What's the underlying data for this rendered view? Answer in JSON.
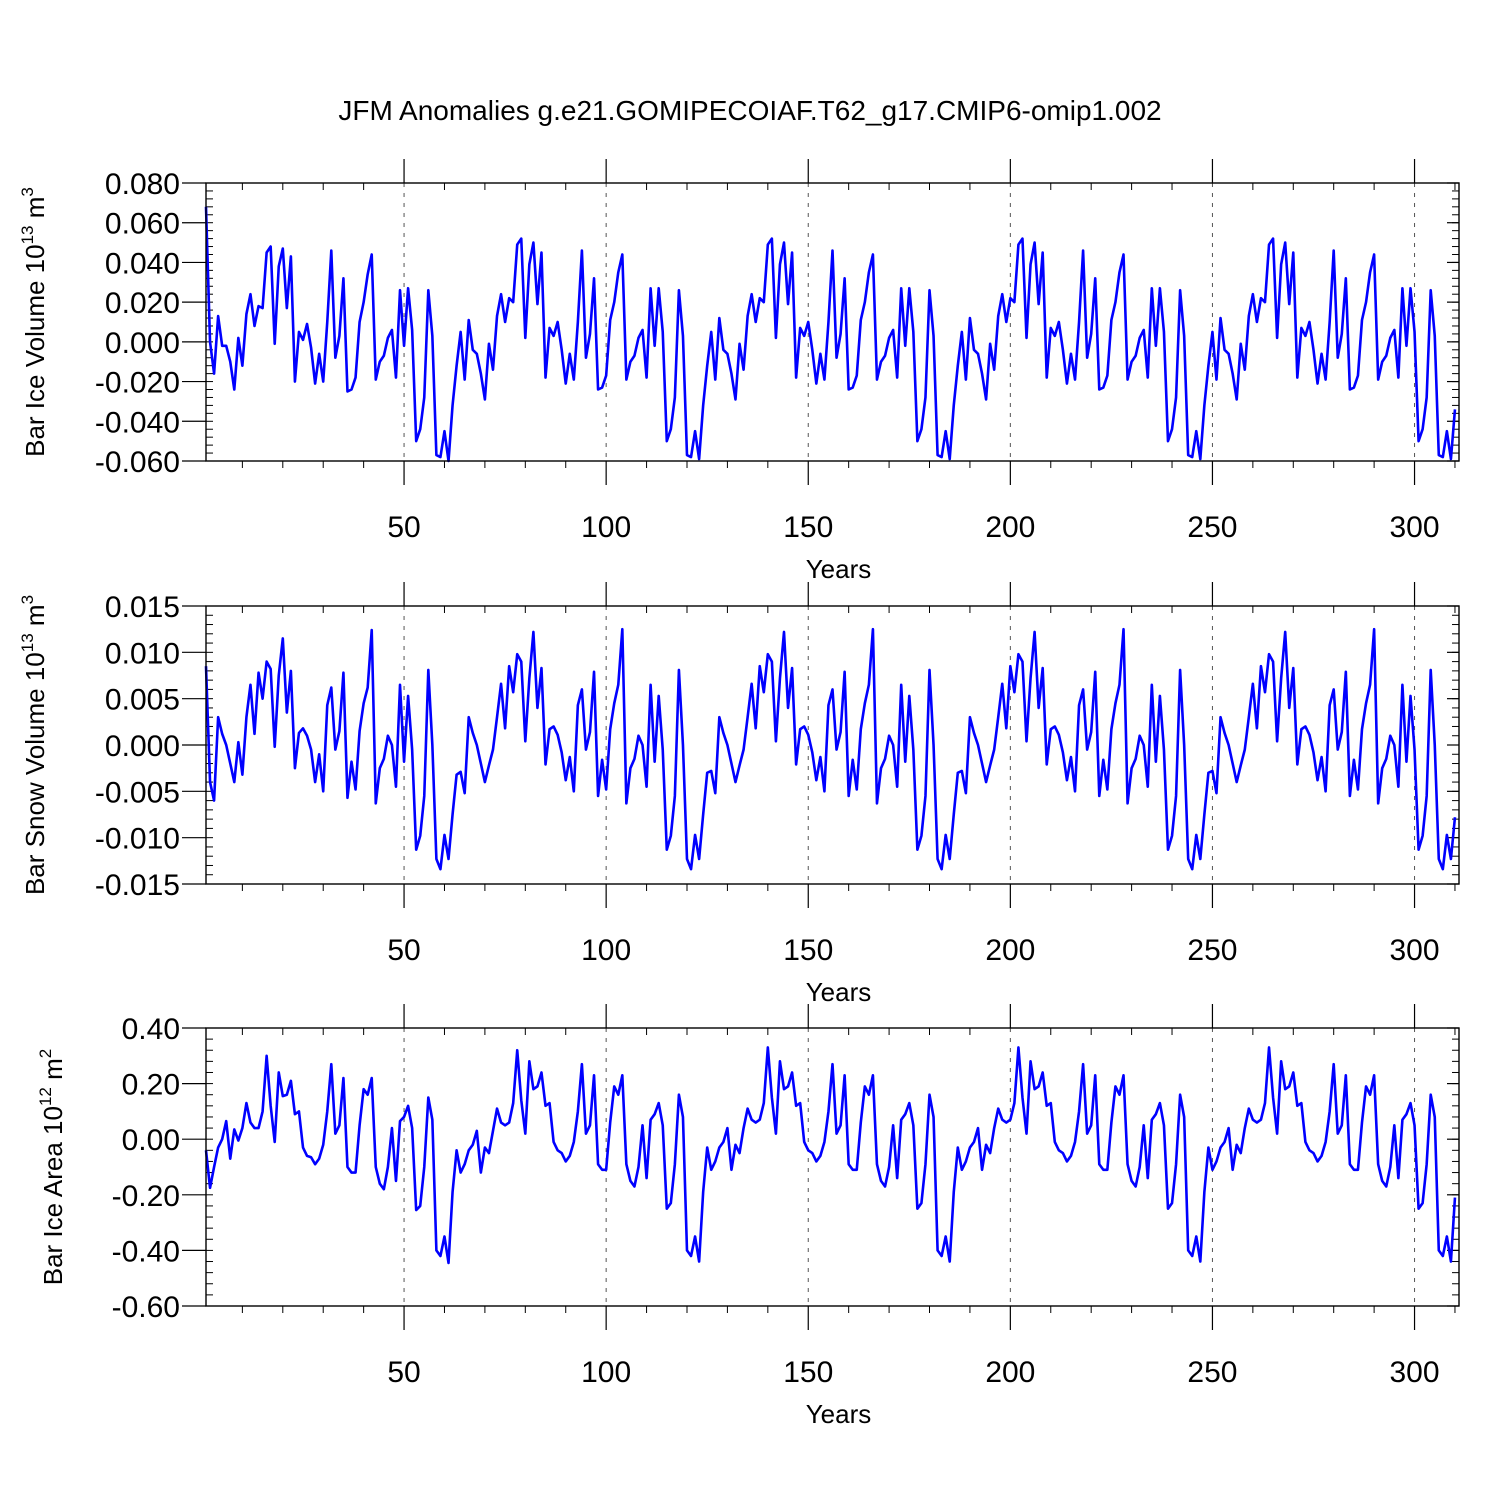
{
  "title": "JFM Anomalies g.e21.GOMIPECOIAF.T62_g17.CMIP6-omip1.002",
  "line_color": "#0000ff",
  "chart_data": [
    {
      "type": "line",
      "name": "bar-ice-volume",
      "xlabel": "Years",
      "ylabel_text": "Bar Ice Volume 10",
      "ylabel_exponent": "13",
      "ylabel_unit": " m",
      "ylabel_unit_exponent": "3",
      "xlim": [
        1,
        311
      ],
      "ylim": [
        -0.06,
        0.08
      ],
      "xticks": [
        50,
        100,
        150,
        200,
        250,
        300
      ],
      "xtick_labels": [
        "50",
        "100",
        "150",
        "200",
        "250",
        "300"
      ],
      "yticks": [
        -0.06,
        -0.04,
        -0.02,
        0.0,
        0.02,
        0.04,
        0.06,
        0.08
      ],
      "ytick_labels": [
        "-0.060",
        "-0.040",
        "-0.020",
        "0.000",
        "0.020",
        "0.040",
        "0.060",
        "0.080"
      ],
      "vertical_gridlines_at": [
        50,
        100,
        150,
        200,
        250,
        300
      ],
      "x_start": 1,
      "x_step": 1,
      "values": [
        0.068,
        0.0,
        -0.016,
        0.013,
        -0.002,
        -0.002,
        -0.01,
        -0.024,
        0.002,
        -0.012,
        0.014,
        0.024,
        0.008,
        0.018,
        0.017,
        0.045,
        0.048,
        -0.001,
        0.038,
        0.047,
        0.017,
        0.043,
        -0.02,
        0.005,
        0.001,
        0.009,
        -0.003,
        -0.021,
        -0.006,
        -0.02,
        0.01,
        0.046,
        -0.008,
        0.003,
        0.032,
        -0.025,
        -0.024,
        -0.018,
        0.01,
        0.02,
        0.034,
        0.044,
        -0.019,
        -0.01,
        -0.007,
        0.002,
        0.006,
        -0.018,
        0.026,
        -0.002,
        0.027,
        0.006,
        -0.05,
        -0.044,
        -0.028,
        0.026,
        0.003,
        -0.057,
        -0.058,
        -0.045,
        -0.06,
        -0.032,
        -0.012,
        0.005,
        -0.019,
        0.011,
        -0.004,
        -0.006,
        -0.016,
        -0.029,
        -0.001,
        -0.014,
        0.013,
        0.024,
        0.01,
        0.022,
        0.02,
        0.049,
        0.052,
        0.002,
        0.039,
        0.05,
        0.019,
        0.045,
        -0.018,
        0.007,
        0.003,
        0.01,
        -0.004,
        -0.021,
        -0.006,
        -0.019,
        0.01,
        0.046,
        -0.008,
        0.004,
        0.032,
        -0.024,
        -0.023,
        -0.017,
        0.011,
        0.02,
        0.035,
        0.044,
        -0.019,
        -0.01,
        -0.007,
        0.002,
        0.006,
        -0.018,
        0.027,
        -0.002,
        0.027,
        0.005,
        -0.05,
        -0.044,
        -0.028,
        0.026,
        0.003,
        -0.057,
        -0.058,
        -0.045,
        -0.059,
        -0.032,
        -0.012,
        0.005,
        -0.019,
        0.012,
        -0.004,
        -0.006,
        -0.016,
        -0.029,
        -0.001,
        -0.014,
        0.013,
        0.024,
        0.01,
        0.022,
        0.02,
        0.049,
        0.052,
        0.002,
        0.039,
        0.05,
        0.019,
        0.045,
        -0.018,
        0.007,
        0.003,
        0.01,
        -0.004,
        -0.021,
        -0.006,
        -0.019,
        0.01,
        0.046,
        -0.008,
        0.004,
        0.032,
        -0.024,
        -0.023,
        -0.017,
        0.011,
        0.02,
        0.035,
        0.044,
        -0.019,
        -0.01,
        -0.007,
        0.002,
        0.006,
        -0.018,
        0.027,
        -0.002,
        0.027,
        0.005,
        -0.05,
        -0.044,
        -0.028,
        0.026,
        0.003,
        -0.057,
        -0.058,
        -0.045,
        -0.059,
        -0.032,
        -0.012,
        0.005,
        -0.019,
        0.012,
        -0.004,
        -0.006,
        -0.016,
        -0.029,
        -0.001,
        -0.014,
        0.013,
        0.024,
        0.01,
        0.022,
        0.02,
        0.049,
        0.052,
        0.002,
        0.039,
        0.05,
        0.019,
        0.045,
        -0.018,
        0.007,
        0.003,
        0.01,
        -0.004,
        -0.021,
        -0.006,
        -0.019,
        0.01,
        0.046,
        -0.008,
        0.004,
        0.032,
        -0.024,
        -0.023,
        -0.017,
        0.011,
        0.02,
        0.035,
        0.044,
        -0.019,
        -0.01,
        -0.007,
        0.002,
        0.006,
        -0.018,
        0.027,
        -0.002,
        0.027,
        0.005,
        -0.05,
        -0.044,
        -0.028,
        0.026,
        0.003,
        -0.057,
        -0.058,
        -0.045,
        -0.059,
        -0.032,
        -0.012,
        0.005,
        -0.019,
        0.012,
        -0.004,
        -0.006,
        -0.016,
        -0.029,
        -0.001,
        -0.014,
        0.013,
        0.024,
        0.01,
        0.022,
        0.02,
        0.049,
        0.052,
        0.002,
        0.039,
        0.05,
        0.019,
        0.045,
        -0.018,
        0.007,
        0.003,
        0.01,
        -0.004,
        -0.021,
        -0.006,
        -0.019,
        0.01,
        0.046,
        -0.008,
        0.004,
        0.032,
        -0.024,
        -0.023,
        -0.017,
        0.011,
        0.02,
        0.035,
        0.044,
        -0.019,
        -0.01,
        -0.007,
        0.002,
        0.006,
        -0.018,
        0.027,
        -0.002,
        0.027,
        0.005,
        -0.05,
        -0.044,
        -0.028,
        0.026,
        0.003,
        -0.057,
        -0.058,
        -0.045,
        -0.059,
        -0.034
      ]
    },
    {
      "type": "line",
      "name": "bar-snow-volume",
      "xlabel": "Years",
      "ylabel_text": "Bar Snow Volume 10",
      "ylabel_exponent": "13",
      "ylabel_unit": " m",
      "ylabel_unit_exponent": "3",
      "xlim": [
        1,
        311
      ],
      "ylim": [
        -0.015,
        0.015
      ],
      "xticks": [
        50,
        100,
        150,
        200,
        250,
        300
      ],
      "xtick_labels": [
        "50",
        "100",
        "150",
        "200",
        "250",
        "300"
      ],
      "yticks": [
        -0.015,
        -0.01,
        -0.005,
        0.0,
        0.005,
        0.01,
        0.015
      ],
      "ytick_labels": [
        "-0.015",
        "-0.010",
        "-0.005",
        "0.000",
        "0.005",
        "0.010",
        "0.015"
      ],
      "vertical_gridlines_at": [
        50,
        100,
        150,
        200,
        250,
        300
      ],
      "x_start": 1,
      "x_step": 1,
      "values": [
        0.0085,
        -0.004,
        -0.006,
        0.003,
        0.0012,
        0.0,
        -0.002,
        -0.004,
        0.0003,
        -0.0032,
        0.003,
        0.0065,
        0.0012,
        0.0078,
        0.005,
        0.009,
        0.0082,
        -0.0002,
        0.0075,
        0.0115,
        0.0035,
        0.008,
        -0.0025,
        0.0013,
        0.0018,
        0.001,
        -0.0005,
        -0.004,
        -0.001,
        -0.005,
        0.0043,
        0.0062,
        -0.0005,
        0.0015,
        0.0078,
        -0.0057,
        -0.0018,
        -0.0048,
        0.0015,
        0.0045,
        0.0062,
        0.0124,
        -0.0063,
        -0.0025,
        -0.0015,
        0.001,
        0.0,
        -0.0045,
        0.0065,
        -0.0018,
        0.0053,
        -0.0005,
        -0.0113,
        -0.0098,
        -0.0055,
        0.0081,
        0.0,
        -0.0123,
        -0.0134,
        -0.0097,
        -0.0123,
        -0.0075,
        -0.0032,
        -0.0029,
        -0.0052,
        0.003,
        0.0013,
        0.0,
        -0.002,
        -0.004,
        -0.0022,
        -0.0005,
        0.003,
        0.0066,
        0.0018,
        0.0085,
        0.0057,
        0.0098,
        0.009,
        0.0004,
        0.0072,
        0.0122,
        0.004,
        0.0083,
        -0.0021,
        0.0017,
        0.002,
        0.0011,
        -0.0008,
        -0.0038,
        -0.0013,
        -0.005,
        0.0043,
        0.006,
        -0.0005,
        0.0014,
        0.0079,
        -0.0055,
        -0.0016,
        -0.0048,
        0.0017,
        0.0045,
        0.0065,
        0.0125,
        -0.0063,
        -0.0025,
        -0.0015,
        0.001,
        0.0,
        -0.0045,
        0.0065,
        -0.0018,
        0.0053,
        -0.0005,
        -0.0113,
        -0.0098,
        -0.0055,
        0.0081,
        0.0,
        -0.0123,
        -0.0134,
        -0.0097,
        -0.0123,
        -0.0075,
        -0.003,
        -0.0028,
        -0.0052,
        0.003,
        0.0013,
        0.0,
        -0.002,
        -0.004,
        -0.0022,
        -0.0005,
        0.003,
        0.0066,
        0.0018,
        0.0085,
        0.0057,
        0.0098,
        0.009,
        0.0004,
        0.0072,
        0.0122,
        0.004,
        0.0083,
        -0.0021,
        0.0017,
        0.002,
        0.0011,
        -0.0008,
        -0.0038,
        -0.0013,
        -0.005,
        0.0043,
        0.006,
        -0.0005,
        0.0014,
        0.0079,
        -0.0055,
        -0.0016,
        -0.0048,
        0.0017,
        0.0045,
        0.0065,
        0.0125,
        -0.0063,
        -0.0025,
        -0.0015,
        0.001,
        0.0,
        -0.0045,
        0.0065,
        -0.0018,
        0.0053,
        -0.0005,
        -0.0113,
        -0.0098,
        -0.0055,
        0.0081,
        0.0,
        -0.0123,
        -0.0134,
        -0.0097,
        -0.0123,
        -0.0075,
        -0.003,
        -0.0028,
        -0.0052,
        0.003,
        0.0013,
        0.0,
        -0.002,
        -0.004,
        -0.0022,
        -0.0005,
        0.003,
        0.0066,
        0.0018,
        0.0085,
        0.0057,
        0.0098,
        0.009,
        0.0004,
        0.0072,
        0.0122,
        0.004,
        0.0083,
        -0.0021,
        0.0017,
        0.002,
        0.0011,
        -0.0008,
        -0.0038,
        -0.0013,
        -0.005,
        0.0043,
        0.006,
        -0.0005,
        0.0014,
        0.0079,
        -0.0055,
        -0.0016,
        -0.0048,
        0.0017,
        0.0045,
        0.0065,
        0.0125,
        -0.0063,
        -0.0025,
        -0.0015,
        0.001,
        0.0,
        -0.0045,
        0.0065,
        -0.0018,
        0.0053,
        -0.0005,
        -0.0113,
        -0.0098,
        -0.0055,
        0.0081,
        0.0,
        -0.0123,
        -0.0134,
        -0.0097,
        -0.0123,
        -0.0075,
        -0.003,
        -0.0028,
        -0.0052,
        0.003,
        0.0013,
        0.0,
        -0.002,
        -0.004,
        -0.0022,
        -0.0005,
        0.003,
        0.0066,
        0.0018,
        0.0085,
        0.0057,
        0.0098,
        0.009,
        0.0004,
        0.0072,
        0.0122,
        0.004,
        0.0083,
        -0.0021,
        0.0017,
        0.002,
        0.0011,
        -0.0008,
        -0.0038,
        -0.0013,
        -0.005,
        0.0043,
        0.006,
        -0.0005,
        0.0014,
        0.0079,
        -0.0055,
        -0.0016,
        -0.0048,
        0.0017,
        0.0045,
        0.0065,
        0.0125,
        -0.0063,
        -0.0025,
        -0.0015,
        0.001,
        0.0,
        -0.0045,
        0.0065,
        -0.0018,
        0.0053,
        -0.0005,
        -0.0113,
        -0.0098,
        -0.0055,
        0.0081,
        0.0,
        -0.0123,
        -0.0134,
        -0.0097,
        -0.0123,
        -0.0078
      ]
    },
    {
      "type": "line",
      "name": "bar-ice-area",
      "xlabel": "Years",
      "ylabel_text": "Bar Ice Area 10",
      "ylabel_exponent": "12",
      "ylabel_unit": " m",
      "ylabel_unit_exponent": "2",
      "xlim": [
        1,
        311
      ],
      "ylim": [
        -0.6,
        0.4
      ],
      "xticks": [
        50,
        100,
        150,
        200,
        250,
        300
      ],
      "xtick_labels": [
        "50",
        "100",
        "150",
        "200",
        "250",
        "300"
      ],
      "yticks": [
        -0.6,
        -0.4,
        -0.2,
        0.0,
        0.2,
        0.4
      ],
      "ytick_labels": [
        "-0.60",
        "-0.40",
        "-0.20",
        "0.00",
        "0.20",
        "0.40"
      ],
      "vertical_gridlines_at": [
        50,
        100,
        150,
        200,
        250,
        300
      ],
      "x_start": 1,
      "x_step": 1,
      "values": [
        -0.04,
        -0.175,
        -0.1,
        -0.03,
        0.0,
        0.065,
        -0.07,
        0.035,
        -0.005,
        0.04,
        0.13,
        0.06,
        0.04,
        0.04,
        0.1,
        0.3,
        0.12,
        -0.01,
        0.24,
        0.155,
        0.16,
        0.21,
        0.09,
        0.1,
        -0.03,
        -0.06,
        -0.065,
        -0.09,
        -0.07,
        -0.02,
        0.1,
        0.27,
        0.02,
        0.05,
        0.22,
        -0.1,
        -0.12,
        -0.12,
        0.05,
        0.18,
        0.16,
        0.22,
        -0.1,
        -0.16,
        -0.18,
        -0.1,
        0.04,
        -0.15,
        0.065,
        0.08,
        0.12,
        0.04,
        -0.255,
        -0.24,
        -0.1,
        0.15,
        0.07,
        -0.4,
        -0.42,
        -0.35,
        -0.445,
        -0.19,
        -0.04,
        -0.12,
        -0.09,
        -0.04,
        -0.02,
        0.03,
        -0.12,
        -0.03,
        -0.05,
        0.03,
        0.11,
        0.06,
        0.05,
        0.06,
        0.13,
        0.32,
        0.14,
        0.02,
        0.28,
        0.18,
        0.19,
        0.24,
        0.12,
        0.13,
        -0.01,
        -0.04,
        -0.05,
        -0.08,
        -0.06,
        -0.01,
        0.1,
        0.27,
        0.02,
        0.05,
        0.23,
        -0.09,
        -0.11,
        -0.11,
        0.06,
        0.19,
        0.16,
        0.23,
        -0.09,
        -0.15,
        -0.17,
        -0.1,
        0.05,
        -0.14,
        0.07,
        0.09,
        0.13,
        0.05,
        -0.25,
        -0.23,
        -0.09,
        0.16,
        0.08,
        -0.4,
        -0.42,
        -0.35,
        -0.44,
        -0.19,
        -0.03,
        -0.11,
        -0.08,
        -0.03,
        -0.01,
        0.04,
        -0.11,
        -0.02,
        -0.05,
        0.04,
        0.11,
        0.07,
        0.06,
        0.07,
        0.13,
        0.33,
        0.15,
        0.02,
        0.28,
        0.18,
        0.19,
        0.24,
        0.12,
        0.13,
        -0.01,
        -0.04,
        -0.05,
        -0.08,
        -0.06,
        -0.01,
        0.1,
        0.27,
        0.02,
        0.05,
        0.23,
        -0.09,
        -0.11,
        -0.11,
        0.06,
        0.19,
        0.16,
        0.23,
        -0.09,
        -0.15,
        -0.17,
        -0.1,
        0.05,
        -0.14,
        0.07,
        0.09,
        0.13,
        0.05,
        -0.25,
        -0.23,
        -0.09,
        0.16,
        0.08,
        -0.4,
        -0.42,
        -0.35,
        -0.44,
        -0.19,
        -0.03,
        -0.11,
        -0.08,
        -0.03,
        -0.01,
        0.04,
        -0.11,
        -0.02,
        -0.05,
        0.04,
        0.11,
        0.07,
        0.06,
        0.07,
        0.13,
        0.33,
        0.15,
        0.02,
        0.28,
        0.18,
        0.19,
        0.24,
        0.12,
        0.13,
        -0.01,
        -0.04,
        -0.05,
        -0.08,
        -0.06,
        -0.01,
        0.1,
        0.27,
        0.02,
        0.05,
        0.23,
        -0.09,
        -0.11,
        -0.11,
        0.06,
        0.19,
        0.16,
        0.23,
        -0.09,
        -0.15,
        -0.17,
        -0.1,
        0.05,
        -0.14,
        0.07,
        0.09,
        0.13,
        0.05,
        -0.25,
        -0.23,
        -0.09,
        0.16,
        0.08,
        -0.4,
        -0.42,
        -0.35,
        -0.44,
        -0.19,
        -0.03,
        -0.11,
        -0.08,
        -0.03,
        -0.01,
        0.04,
        -0.11,
        -0.02,
        -0.05,
        0.04,
        0.11,
        0.07,
        0.06,
        0.07,
        0.13,
        0.33,
        0.15,
        0.02,
        0.28,
        0.18,
        0.19,
        0.24,
        0.12,
        0.13,
        -0.01,
        -0.04,
        -0.05,
        -0.08,
        -0.06,
        -0.01,
        0.1,
        0.27,
        0.02,
        0.05,
        0.23,
        -0.09,
        -0.11,
        -0.11,
        0.06,
        0.19,
        0.16,
        0.23,
        -0.09,
        -0.15,
        -0.17,
        -0.1,
        0.05,
        -0.14,
        0.07,
        0.09,
        0.13,
        0.05,
        -0.25,
        -0.23,
        -0.09,
        0.16,
        0.08,
        -0.4,
        -0.42,
        -0.35,
        -0.44,
        -0.21
      ]
    }
  ]
}
